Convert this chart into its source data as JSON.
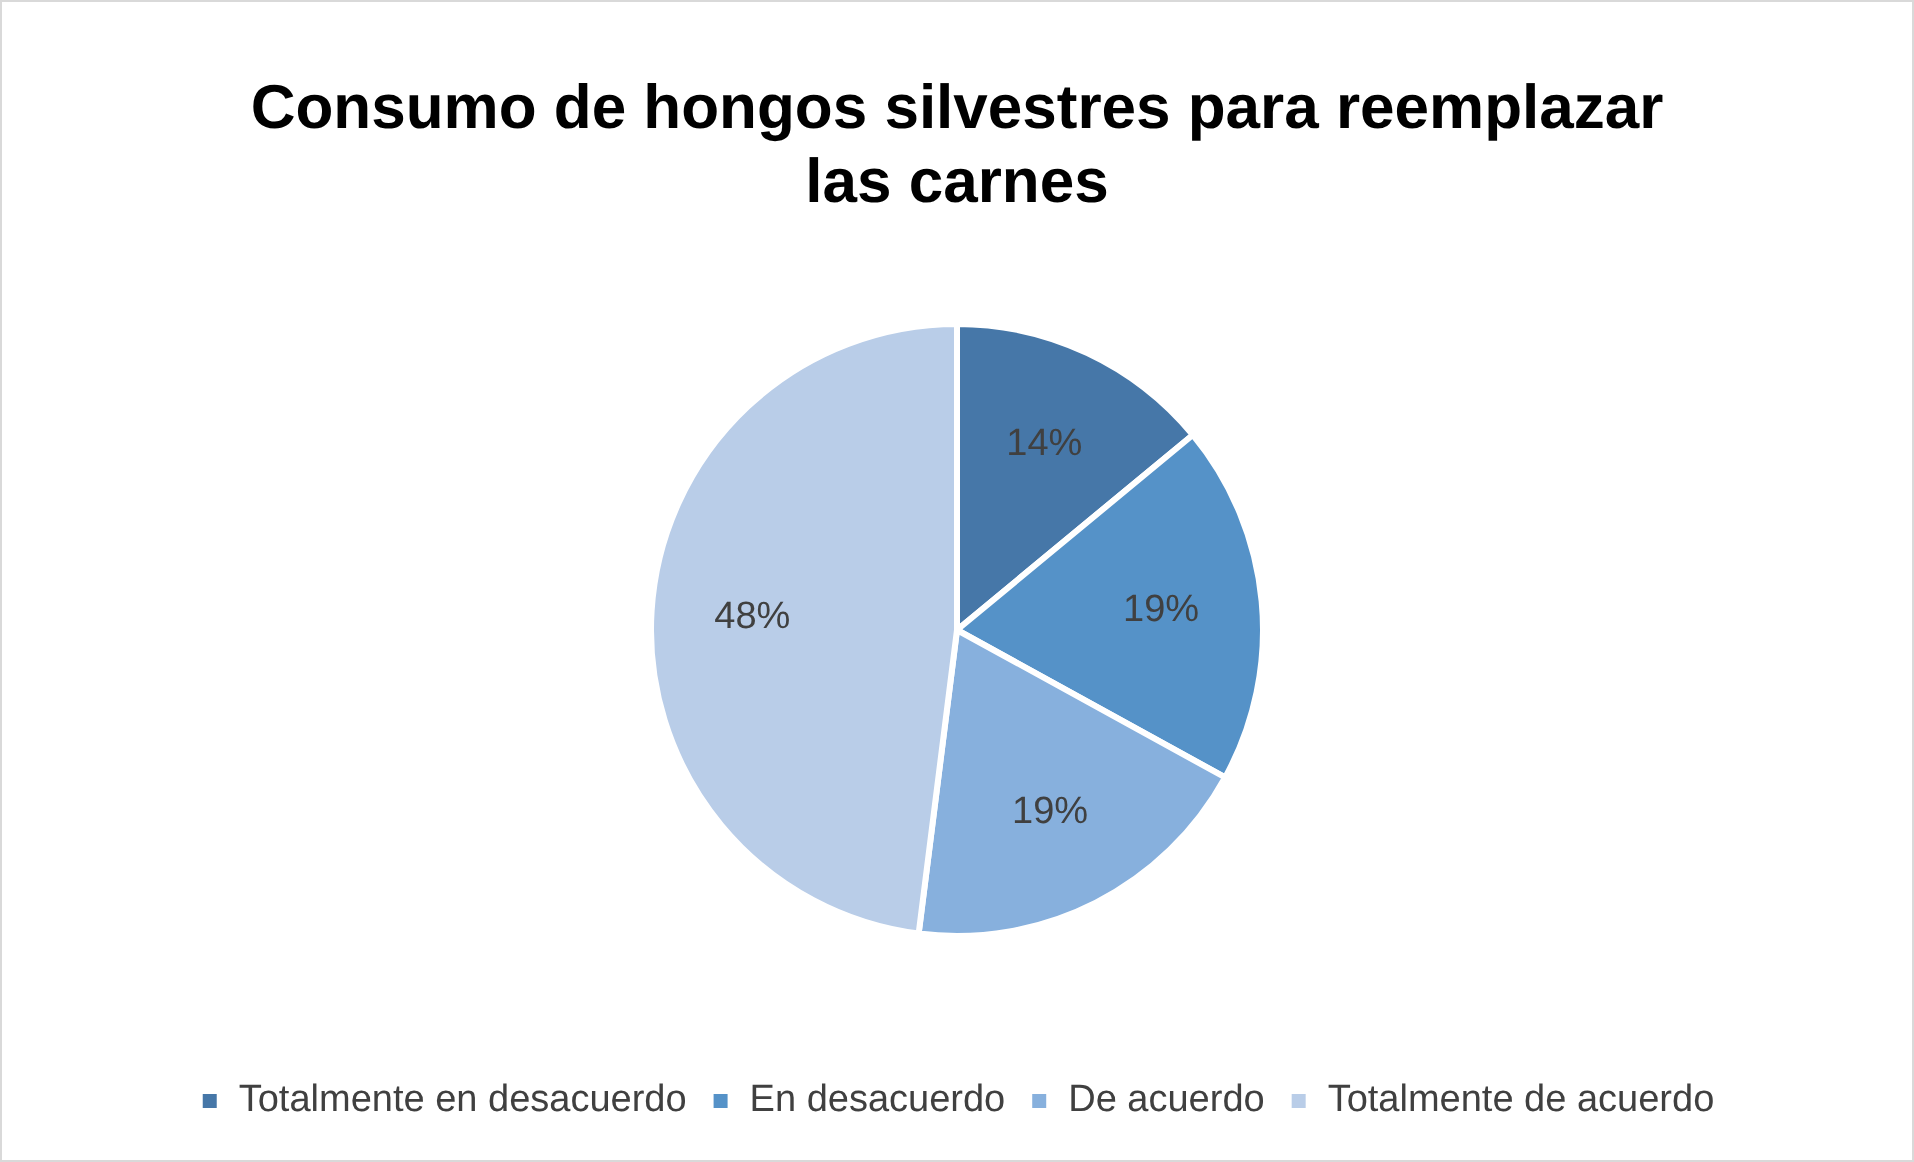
{
  "chart_data": {
    "type": "pie",
    "title": "Consumo de hongos silvestres para reemplazar las carnes",
    "categories": [
      "Totalmente en desacuerdo",
      "En desacuerdo",
      "De acuerdo",
      "Totalmente de acuerdo"
    ],
    "values": [
      14,
      19,
      19,
      48
    ],
    "colors": [
      "#4677a8",
      "#5592c8",
      "#87b0dd",
      "#b9cde8"
    ],
    "value_labels": [
      "14%",
      "19%",
      "19%",
      "48%"
    ],
    "legend": "bottom"
  }
}
